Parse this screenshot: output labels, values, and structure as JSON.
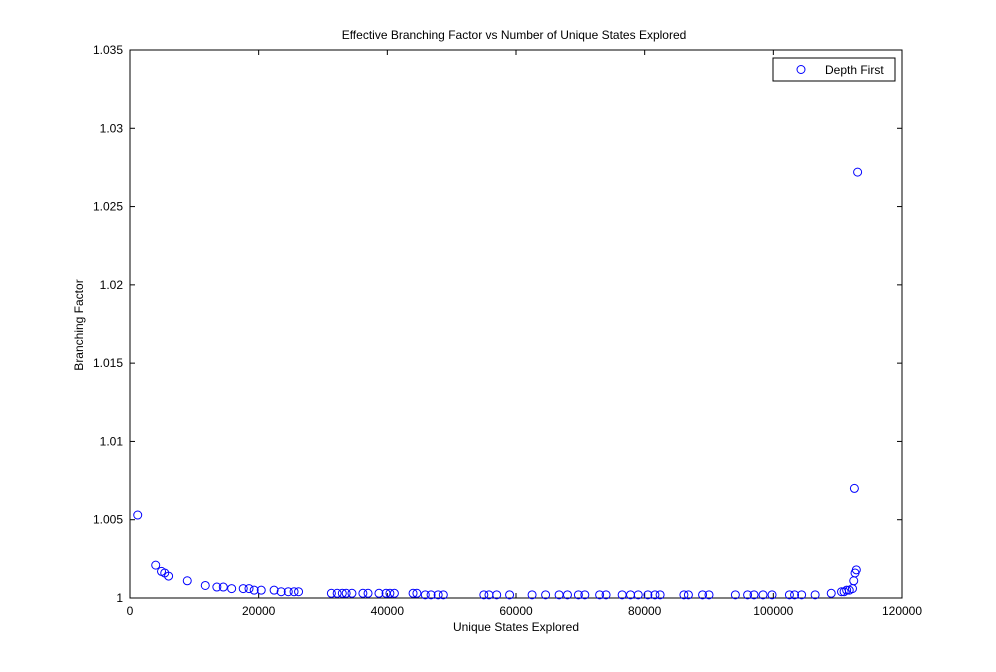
{
  "chart_data": {
    "type": "scatter",
    "title": "Effective Branching Factor vs Number of Unique States Explored",
    "xlabel": "Unique States Explored",
    "ylabel": "Branching Factor",
    "xlim": [
      0,
      120000
    ],
    "ylim": [
      1,
      1.035
    ],
    "x_ticks": [
      0,
      20000,
      40000,
      60000,
      80000,
      100000,
      120000
    ],
    "x_tick_labels": [
      "0",
      "20000",
      "40000",
      "60000",
      "80000",
      "100000",
      "120000"
    ],
    "y_ticks": [
      1,
      1.005,
      1.01,
      1.015,
      1.02,
      1.025,
      1.03,
      1.035
    ],
    "y_tick_labels": [
      "1",
      "1.005",
      "1.01",
      "1.015",
      "1.02",
      "1.025",
      "1.03",
      "1.035"
    ],
    "grid": false,
    "legend_position": "top-right",
    "marker": "circle-open",
    "series": [
      {
        "name": "Depth First",
        "color": "#0000ff",
        "points": [
          [
            1200,
            1.0053
          ],
          [
            4000,
            1.0021
          ],
          [
            4900,
            1.0017
          ],
          [
            5400,
            1.0016
          ],
          [
            6000,
            1.0014
          ],
          [
            8900,
            1.0011
          ],
          [
            11700,
            1.0008
          ],
          [
            13500,
            1.0007
          ],
          [
            14500,
            1.0007
          ],
          [
            15800,
            1.0006
          ],
          [
            17600,
            1.0006
          ],
          [
            18500,
            1.0006
          ],
          [
            19300,
            1.0005
          ],
          [
            20400,
            1.0005
          ],
          [
            22400,
            1.0005
          ],
          [
            23500,
            1.0004
          ],
          [
            24600,
            1.0004
          ],
          [
            25500,
            1.0004
          ],
          [
            26200,
            1.0004
          ],
          [
            31300,
            1.0003
          ],
          [
            32200,
            1.0003
          ],
          [
            33000,
            1.0003
          ],
          [
            33600,
            1.0003
          ],
          [
            34500,
            1.0003
          ],
          [
            36200,
            1.0003
          ],
          [
            37000,
            1.0003
          ],
          [
            38700,
            1.0003
          ],
          [
            39800,
            1.0003
          ],
          [
            40400,
            1.0003
          ],
          [
            41100,
            1.0003
          ],
          [
            44000,
            1.0003
          ],
          [
            44600,
            1.0003
          ],
          [
            45900,
            1.0002
          ],
          [
            46800,
            1.0002
          ],
          [
            47900,
            1.0002
          ],
          [
            48700,
            1.0002
          ],
          [
            55000,
            1.0002
          ],
          [
            55800,
            1.0002
          ],
          [
            57000,
            1.0002
          ],
          [
            59000,
            1.0002
          ],
          [
            62500,
            1.0002
          ],
          [
            64600,
            1.0002
          ],
          [
            66700,
            1.0002
          ],
          [
            68000,
            1.0002
          ],
          [
            69700,
            1.0002
          ],
          [
            70700,
            1.0002
          ],
          [
            73000,
            1.0002
          ],
          [
            74000,
            1.0002
          ],
          [
            76500,
            1.0002
          ],
          [
            77800,
            1.0002
          ],
          [
            79000,
            1.0002
          ],
          [
            80500,
            1.0002
          ],
          [
            81600,
            1.0002
          ],
          [
            82400,
            1.0002
          ],
          [
            86100,
            1.0002
          ],
          [
            86800,
            1.0002
          ],
          [
            89000,
            1.0002
          ],
          [
            90000,
            1.0002
          ],
          [
            94100,
            1.0002
          ],
          [
            96000,
            1.0002
          ],
          [
            97000,
            1.0002
          ],
          [
            98400,
            1.0002
          ],
          [
            99800,
            1.0002
          ],
          [
            102500,
            1.0002
          ],
          [
            103300,
            1.0002
          ],
          [
            104400,
            1.0002
          ],
          [
            106500,
            1.0002
          ],
          [
            109000,
            1.0003
          ],
          [
            110600,
            1.0004
          ],
          [
            111000,
            1.0004
          ],
          [
            111400,
            1.0005
          ],
          [
            111800,
            1.0005
          ],
          [
            112300,
            1.0006
          ],
          [
            112500,
            1.0011
          ],
          [
            112700,
            1.0016
          ],
          [
            112900,
            1.0018
          ],
          [
            112600,
            1.007
          ],
          [
            113100,
            1.0272
          ]
        ]
      }
    ]
  }
}
